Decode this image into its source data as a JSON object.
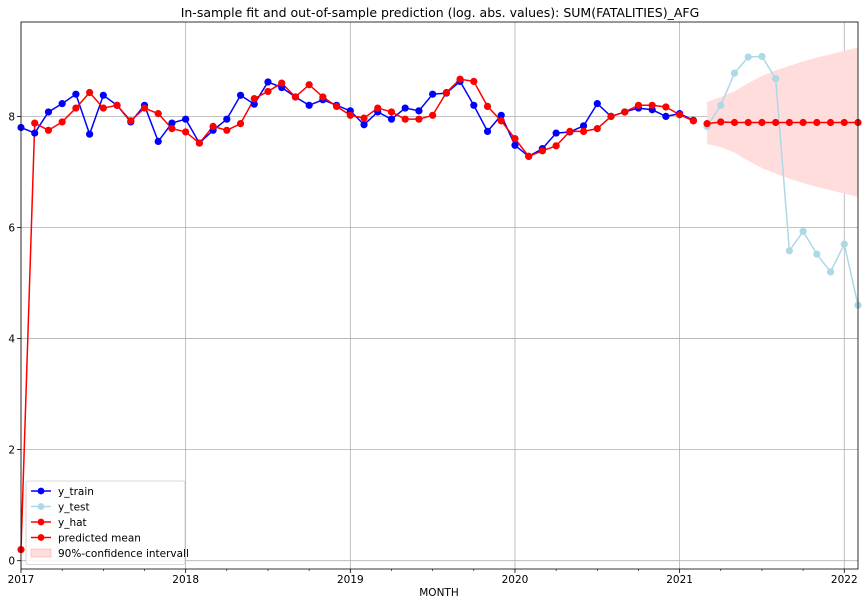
{
  "chart_data": {
    "type": "line",
    "title": "In-sample fit and out-of-sample prediction (log. abs. values): SUM(FATALITIES)_AFG",
    "xlabel": "MONTH",
    "ylabel": "",
    "x_start": "2017-01",
    "x_end": "2022-02",
    "xlim": [
      "2017-01",
      "2022-02"
    ],
    "ylim": [
      -0.15,
      9.7
    ],
    "x_tick_labels": [
      "2017",
      "2018",
      "2019",
      "2020",
      "2021",
      "2022"
    ],
    "y_ticks": [
      0,
      2,
      4,
      6,
      8
    ],
    "grid": true,
    "legend_position": "lower-left",
    "series": [
      {
        "name": "y_train",
        "color": "#0000ff",
        "x": [
          "2017-01",
          "2017-02",
          "2017-03",
          "2017-04",
          "2017-05",
          "2017-06",
          "2017-07",
          "2017-08",
          "2017-09",
          "2017-10",
          "2017-11",
          "2017-12",
          "2018-01",
          "2018-02",
          "2018-03",
          "2018-04",
          "2018-05",
          "2018-06",
          "2018-07",
          "2018-08",
          "2018-09",
          "2018-10",
          "2018-11",
          "2018-12",
          "2019-01",
          "2019-02",
          "2019-03",
          "2019-04",
          "2019-05",
          "2019-06",
          "2019-07",
          "2019-08",
          "2019-09",
          "2019-10",
          "2019-11",
          "2019-12",
          "2020-01",
          "2020-02",
          "2020-03",
          "2020-04",
          "2020-05",
          "2020-06",
          "2020-07",
          "2020-08",
          "2020-09",
          "2020-10",
          "2020-11",
          "2020-12",
          "2021-01",
          "2021-02"
        ],
        "values": [
          7.8,
          7.7,
          8.08,
          8.23,
          8.4,
          7.68,
          8.38,
          8.2,
          7.9,
          8.2,
          7.55,
          7.88,
          7.95,
          7.52,
          7.75,
          7.95,
          8.38,
          8.22,
          8.62,
          8.52,
          8.35,
          8.2,
          8.3,
          8.2,
          8.1,
          7.85,
          8.08,
          7.95,
          8.15,
          8.1,
          8.4,
          8.42,
          8.63,
          8.2,
          7.73,
          8.02,
          7.48,
          7.28,
          7.42,
          7.7,
          7.72,
          7.83,
          8.23,
          8.0,
          8.08,
          8.15,
          8.12,
          8.0,
          8.05,
          7.93
        ]
      },
      {
        "name": "y_test",
        "color": "#add8e6",
        "x": [
          "2021-03",
          "2021-04",
          "2021-05",
          "2021-06",
          "2021-07",
          "2021-08",
          "2021-09",
          "2021-10",
          "2021-11",
          "2021-12",
          "2022-01",
          "2022-02"
        ],
        "values": [
          7.82,
          8.2,
          8.78,
          9.07,
          9.08,
          8.68,
          5.58,
          5.93,
          5.52,
          5.2,
          5.7,
          4.6
        ]
      },
      {
        "name": "y_hat",
        "color": "#ff0000",
        "x": [
          "2017-01",
          "2017-02",
          "2017-03",
          "2017-04",
          "2017-05",
          "2017-06",
          "2017-07",
          "2017-08",
          "2017-09",
          "2017-10",
          "2017-11",
          "2017-12",
          "2018-01",
          "2018-02",
          "2018-03",
          "2018-04",
          "2018-05",
          "2018-06",
          "2018-07",
          "2018-08",
          "2018-09",
          "2018-10",
          "2018-11",
          "2018-12",
          "2019-01",
          "2019-02",
          "2019-03",
          "2019-04",
          "2019-05",
          "2019-06",
          "2019-07",
          "2019-08",
          "2019-09",
          "2019-10",
          "2019-11",
          "2019-12",
          "2020-01",
          "2020-02",
          "2020-03",
          "2020-04",
          "2020-05",
          "2020-06",
          "2020-07",
          "2020-08",
          "2020-09",
          "2020-10",
          "2020-11",
          "2020-12",
          "2021-01",
          "2021-02"
        ],
        "values": [
          0.2,
          7.88,
          7.75,
          7.9,
          8.15,
          8.43,
          8.15,
          8.2,
          7.92,
          8.15,
          8.05,
          7.78,
          7.72,
          7.52,
          7.82,
          7.75,
          7.87,
          8.32,
          8.45,
          8.6,
          8.35,
          8.57,
          8.35,
          8.18,
          8.02,
          7.97,
          8.15,
          8.08,
          7.95,
          7.95,
          8.02,
          8.43,
          8.67,
          8.63,
          8.18,
          7.92,
          7.6,
          7.28,
          7.38,
          7.47,
          7.73,
          7.73,
          7.78,
          8.0,
          8.08,
          8.2,
          8.2,
          8.17,
          8.03,
          7.92
        ]
      },
      {
        "name": "predicted mean",
        "color": "#ff0000",
        "x": [
          "2021-03",
          "2021-04",
          "2021-05",
          "2021-06",
          "2021-07",
          "2021-08",
          "2021-09",
          "2021-10",
          "2021-11",
          "2021-12",
          "2022-01",
          "2022-02"
        ],
        "values": [
          7.87,
          7.9,
          7.89,
          7.89,
          7.89,
          7.89,
          7.89,
          7.89,
          7.89,
          7.89,
          7.89,
          7.89
        ]
      }
    ],
    "confidence_band": {
      "name": "90%-confidence intervall",
      "color": "#ffdddd",
      "x": [
        "2021-03",
        "2021-04",
        "2021-05",
        "2021-06",
        "2021-07",
        "2021-08",
        "2021-09",
        "2021-10",
        "2021-11",
        "2021-12",
        "2022-01",
        "2022-02"
      ],
      "lower": [
        7.5,
        7.45,
        7.35,
        7.2,
        7.07,
        6.97,
        6.88,
        6.8,
        6.73,
        6.67,
        6.61,
        6.55
      ],
      "upper": [
        8.26,
        8.35,
        8.45,
        8.6,
        8.73,
        8.83,
        8.91,
        8.99,
        9.06,
        9.12,
        9.18,
        9.24
      ]
    }
  }
}
